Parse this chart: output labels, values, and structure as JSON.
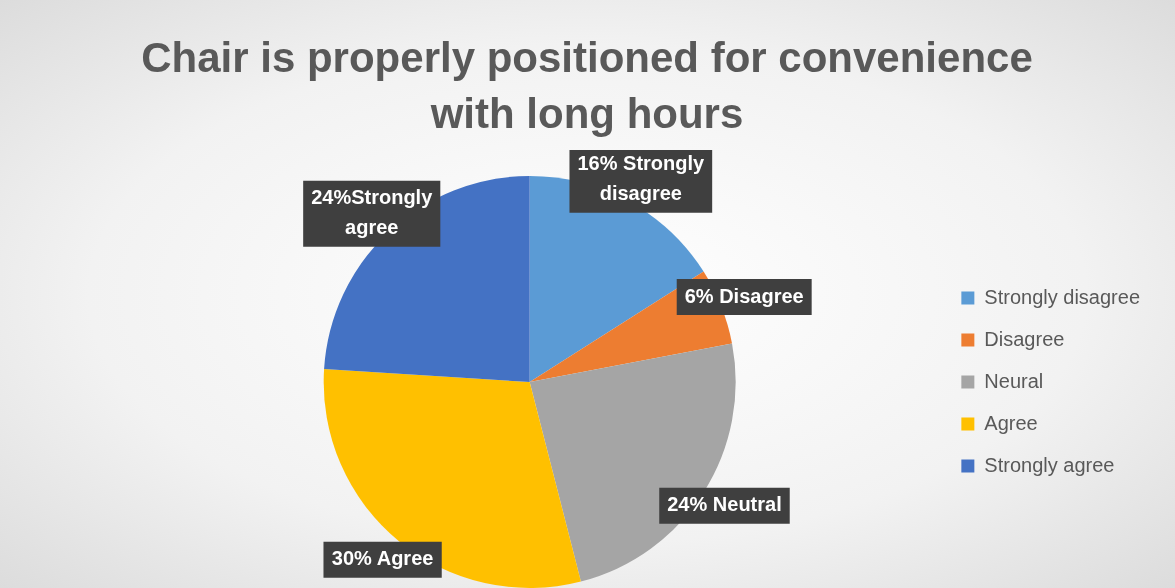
{
  "chart_data": {
    "type": "pie",
    "title": "Chair is properly positioned for convenience with long hours",
    "categories": [
      "Strongly disagree",
      "Disagree",
      "Neural",
      "Agree",
      "Strongly agree"
    ],
    "values": [
      16,
      6,
      24,
      30,
      24
    ],
    "colors": [
      "#5b9bd5",
      "#ed7d31",
      "#a5a5a5",
      "#ffc000",
      "#4472c4"
    ],
    "value_labels": [
      "16% Strongly disagree",
      "6% Disagree",
      "24% Neutral",
      "30% Agree",
      "24%Strongly agree"
    ],
    "legend": "right"
  }
}
